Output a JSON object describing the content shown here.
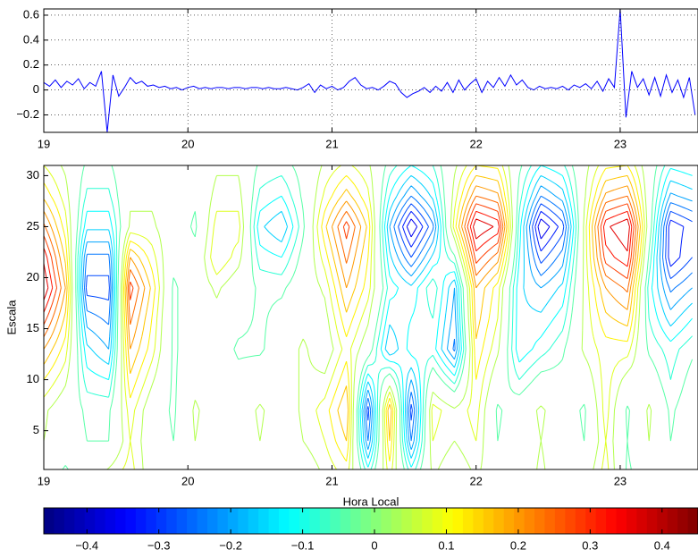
{
  "chart_data": [
    {
      "type": "line",
      "x": [
        19.0,
        19.04,
        19.08,
        19.12,
        19.16,
        19.2,
        19.24,
        19.28,
        19.32,
        19.36,
        19.4,
        19.44,
        19.48,
        19.52,
        19.56,
        19.6,
        19.64,
        19.68,
        19.72,
        19.76,
        19.8,
        19.84,
        19.88,
        19.92,
        19.96,
        20.0,
        20.04,
        20.08,
        20.12,
        20.16,
        20.2,
        20.24,
        20.28,
        20.32,
        20.36,
        20.4,
        20.44,
        20.48,
        20.52,
        20.56,
        20.6,
        20.64,
        20.68,
        20.72,
        20.76,
        20.8,
        20.84,
        20.88,
        20.92,
        20.96,
        21.0,
        21.04,
        21.08,
        21.12,
        21.16,
        21.2,
        21.24,
        21.28,
        21.32,
        21.36,
        21.4,
        21.44,
        21.48,
        21.52,
        21.56,
        21.6,
        21.64,
        21.68,
        21.72,
        21.76,
        21.8,
        21.84,
        21.88,
        21.92,
        21.96,
        22.0,
        22.04,
        22.08,
        22.12,
        22.16,
        22.2,
        22.24,
        22.28,
        22.32,
        22.36,
        22.4,
        22.44,
        22.48,
        22.52,
        22.56,
        22.6,
        22.64,
        22.68,
        22.72,
        22.76,
        22.8,
        22.84,
        22.88,
        22.92,
        22.96,
        23.0,
        23.04,
        23.08,
        23.12,
        23.16,
        23.2,
        23.24,
        23.28,
        23.32,
        23.36,
        23.4,
        23.44,
        23.48,
        23.52
      ],
      "series": [
        {
          "color": "#0000ff",
          "values": [
            0.06,
            0.03,
            0.08,
            0.02,
            0.07,
            0.04,
            0.09,
            0.01,
            0.06,
            0.03,
            0.15,
            -0.34,
            0.12,
            -0.05,
            0.02,
            0.1,
            0.05,
            0.07,
            0.03,
            0.04,
            0.02,
            0.03,
            0.01,
            0.02,
            0,
            0.02,
            0.03,
            0.01,
            0.02,
            0.01,
            0.02,
            0.02,
            0.01,
            0.02,
            0.02,
            0.01,
            0.02,
            0.02,
            0.01,
            0.02,
            0.01,
            0.01,
            0.02,
            0.01,
            0,
            0.02,
            0.05,
            -0.02,
            0.04,
            0.01,
            0.03,
            0,
            0.02,
            0.07,
            0.1,
            0.04,
            0.01,
            0.02,
            0,
            0.03,
            0.07,
            0.05,
            -0.02,
            -0.06,
            -0.03,
            -0.01,
            0.02,
            -0.02,
            0.03,
            -0.01,
            0.06,
            -0.02,
            0.08,
            0,
            0.05,
            0.09,
            -0.02,
            0.07,
            0.02,
            0.1,
            0.03,
            0.12,
            0.04,
            0.08,
            0.02,
            0,
            0.03,
            0.01,
            0.02,
            0.01,
            0.03,
            0,
            0.04,
            0.02,
            0.05,
            0.01,
            0.07,
            -0.01,
            0.09,
            0.02,
            0.65,
            -0.22,
            0.15,
            0.02,
            0.09,
            -0.04,
            0.1,
            -0.05,
            0.12,
            -0.02,
            0.08,
            -0.06,
            0.1,
            -0.2
          ]
        }
      ],
      "xlim": [
        19,
        23.54
      ],
      "xticks": [
        19,
        20,
        21,
        22,
        23
      ],
      "ylim": [
        -0.34,
        0.65
      ],
      "yticks": [
        {
          "value": -0.2,
          "label": "−0.2"
        },
        0,
        0.2,
        0.4,
        0.6
      ],
      "grid": true
    },
    {
      "type": "contour",
      "x_label": "Hora Local",
      "y_label": "Escala",
      "x": [
        19,
        19.15,
        19.3,
        19.45,
        19.6,
        19.75,
        19.9,
        20.05,
        20.2,
        20.35,
        20.5,
        20.65,
        20.8,
        20.95,
        21.1,
        21.25,
        21.4,
        21.55,
        21.7,
        21.85,
        22,
        22.15,
        22.3,
        22.45,
        22.6,
        22.75,
        22.9,
        23.05,
        23.2,
        23.35,
        23.5
      ],
      "y": [
        1,
        4,
        7,
        10,
        13,
        16,
        19,
        22,
        25,
        28,
        31
      ],
      "z": [
        [
          0,
          -0.05,
          0,
          0.05,
          0.1,
          0,
          0,
          0,
          0,
          0,
          0,
          0,
          0,
          0.05,
          0.1,
          -0.1,
          0.1,
          -0.1,
          0.05,
          0,
          0.05,
          0,
          0,
          0.05,
          0,
          0,
          0.1,
          -0.05,
          0,
          0,
          0
        ],
        [
          0.04,
          0,
          -0.04,
          -0.04,
          0.08,
          0,
          -0.04,
          0.04,
          0,
          0,
          0.04,
          0,
          0.04,
          0.08,
          0.16,
          -0.24,
          0.16,
          -0.24,
          0.08,
          0.04,
          0.08,
          -0.04,
          0,
          0.04,
          0,
          -0.04,
          0.08,
          -0.04,
          0.04,
          -0.04,
          0
        ],
        [
          0.05,
          0,
          -0.05,
          -0.05,
          0.1,
          0,
          -0.05,
          0.05,
          0,
          0,
          0.05,
          0,
          0.05,
          0.1,
          0.2,
          -0.3,
          0.2,
          -0.3,
          0.1,
          0.05,
          0.1,
          -0.05,
          0,
          0.05,
          0,
          -0.05,
          0.1,
          -0.05,
          0.05,
          -0.05,
          0
        ],
        [
          0.12,
          0.05,
          -0.1,
          -0.12,
          0.15,
          0.05,
          -0.05,
          0.02,
          0,
          -0.02,
          0,
          0,
          0.05,
          0.05,
          0.15,
          -0.15,
          0,
          -0.2,
          0,
          -0.1,
          0.12,
          0,
          -0.08,
          -0.02,
          -0.02,
          0,
          0.1,
          0.02,
          0,
          -0.08,
          -0.02
        ],
        [
          0.2,
          0.1,
          -0.15,
          -0.2,
          0.2,
          0.1,
          -0.05,
          0,
          0,
          -0.05,
          -0.05,
          0,
          0.05,
          0,
          0.1,
          0,
          -0.2,
          -0.1,
          -0.1,
          -0.25,
          0.15,
          0.05,
          -0.15,
          -0.1,
          -0.05,
          0.05,
          0.1,
          0.1,
          -0.05,
          -0.1,
          -0.05
        ],
        [
          0.3,
          0.15,
          -0.22,
          -0.25,
          0.25,
          0.12,
          -0.05,
          0,
          0.02,
          -0.02,
          -0.05,
          -0.02,
          0.02,
          0.02,
          0.15,
          0.05,
          -0.15,
          -0.12,
          -0.08,
          -0.22,
          0.18,
          0.08,
          -0.15,
          -0.15,
          -0.1,
          0.05,
          0.15,
          0.18,
          -0.08,
          -0.18,
          -0.12
        ],
        [
          0.4,
          0.2,
          -0.3,
          -0.3,
          0.3,
          0.15,
          -0.05,
          0,
          0.05,
          0,
          -0.05,
          -0.05,
          0,
          0.05,
          0.2,
          0.1,
          -0.1,
          -0.15,
          -0.05,
          -0.2,
          0.2,
          0.1,
          -0.15,
          -0.2,
          -0.15,
          0.05,
          0.2,
          0.25,
          -0.1,
          -0.25,
          -0.2
        ],
        [
          0.35,
          0.15,
          -0.25,
          -0.25,
          0.2,
          0.1,
          -0.02,
          -0.02,
          0.12,
          0.06,
          -0.1,
          -0.12,
          -0.02,
          0.1,
          0.25,
          0.12,
          -0.15,
          -0.28,
          -0.15,
          -0.05,
          0.3,
          0.22,
          -0.12,
          -0.3,
          -0.22,
          0.05,
          0.3,
          0.35,
          -0.05,
          -0.35,
          -0.28
        ],
        [
          0.25,
          0.1,
          -0.15,
          -0.15,
          0.05,
          0.05,
          0,
          -0.05,
          0.1,
          0.1,
          -0.15,
          -0.2,
          -0.05,
          0.15,
          0.3,
          0.15,
          -0.2,
          -0.4,
          -0.25,
          0.1,
          0.4,
          0.35,
          -0.1,
          -0.4,
          -0.3,
          0.05,
          0.35,
          0.4,
          0,
          -0.35,
          -0.3
        ],
        [
          0.15,
          0.06,
          -0.09,
          -0.09,
          0.03,
          0.03,
          0,
          -0.03,
          0.06,
          0.06,
          -0.09,
          -0.12,
          -0.03,
          0.09,
          0.18,
          0.09,
          -0.12,
          -0.24,
          -0.15,
          0.06,
          0.24,
          0.21,
          -0.06,
          -0.24,
          -0.18,
          0.03,
          0.21,
          0.24,
          0,
          -0.21,
          -0.18
        ],
        [
          0.08,
          0.03,
          -0.05,
          -0.05,
          0.02,
          0.02,
          0,
          -0.02,
          0.03,
          0.03,
          -0.05,
          -0.06,
          -0.02,
          0.05,
          0.09,
          0.05,
          -0.06,
          -0.12,
          -0.08,
          0.03,
          0.12,
          0.11,
          -0.03,
          -0.12,
          -0.09,
          0.02,
          0.11,
          0.12,
          0,
          -0.11,
          -0.09
        ]
      ],
      "levels": [
        -0.44,
        -0.4,
        -0.36,
        -0.32,
        -0.28,
        -0.24,
        -0.2,
        -0.16,
        -0.12,
        -0.08,
        -0.04,
        0.04,
        0.08,
        0.12,
        0.16,
        0.2,
        0.24,
        0.28,
        0.32,
        0.36,
        0.4,
        0.44
      ],
      "xlim": [
        19,
        23.54
      ],
      "xticks": [
        19,
        20,
        21,
        22,
        23
      ],
      "ylim": [
        1.2,
        31
      ],
      "yticks": [
        5,
        10,
        15,
        20,
        25,
        30
      ],
      "grid": false
    },
    {
      "type": "colorbar",
      "colormap": "jet",
      "xlim": [
        -0.46,
        0.45
      ],
      "xticks": [
        {
          "value": -0.4,
          "label": "−0.4"
        },
        {
          "value": -0.3,
          "label": "−0.3"
        },
        {
          "value": -0.2,
          "label": "−0.2"
        },
        {
          "value": -0.1,
          "label": "−0.1"
        },
        0,
        0.1,
        0.2,
        0.3,
        0.4
      ]
    }
  ]
}
